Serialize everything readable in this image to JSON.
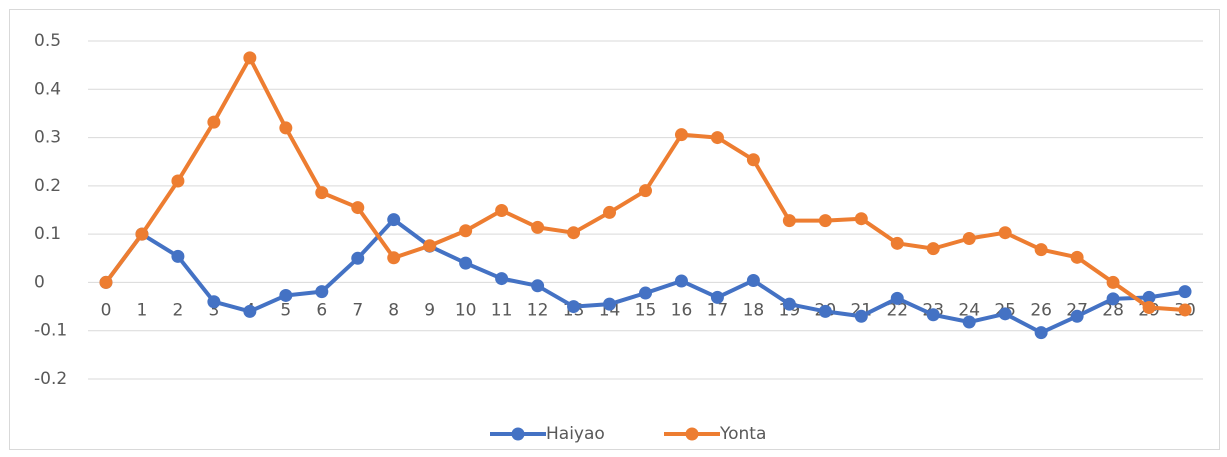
{
  "chart_data": {
    "type": "line",
    "categories": [
      0,
      1,
      2,
      3,
      4,
      5,
      6,
      7,
      8,
      9,
      10,
      11,
      12,
      13,
      14,
      15,
      16,
      17,
      18,
      19,
      20,
      21,
      22,
      23,
      24,
      25,
      26,
      27,
      28,
      29,
      30
    ],
    "series": [
      {
        "name": "Haiyao",
        "color": "#4472c4",
        "values": [
          0,
          0.1,
          0.054,
          -0.04,
          -0.06,
          -0.027,
          -0.019,
          0.05,
          0.13,
          0.075,
          0.04,
          0.008,
          -0.007,
          -0.05,
          -0.045,
          -0.022,
          0.003,
          -0.031,
          0.004,
          -0.045,
          -0.06,
          -0.07,
          -0.033,
          -0.067,
          -0.082,
          -0.065,
          -0.104,
          -0.07,
          -0.034,
          -0.031,
          -0.019
        ]
      },
      {
        "name": "Yonta",
        "color": "#ed7d31",
        "values": [
          0,
          0.1,
          0.21,
          0.332,
          0.465,
          0.32,
          0.186,
          0.155,
          0.051,
          0.076,
          0.107,
          0.149,
          0.114,
          0.103,
          0.145,
          0.19,
          0.306,
          0.3,
          0.254,
          0.128,
          0.128,
          0.132,
          0.081,
          0.07,
          0.091,
          0.103,
          0.068,
          0.052,
          0,
          -0.052,
          -0.057
        ]
      }
    ],
    "ylim": [
      -0.2,
      0.5
    ],
    "yticks": [
      -0.2,
      -0.1,
      0,
      0.1,
      0.2,
      0.3,
      0.4,
      0.5
    ],
    "grid": true,
    "legend": "bottom"
  }
}
